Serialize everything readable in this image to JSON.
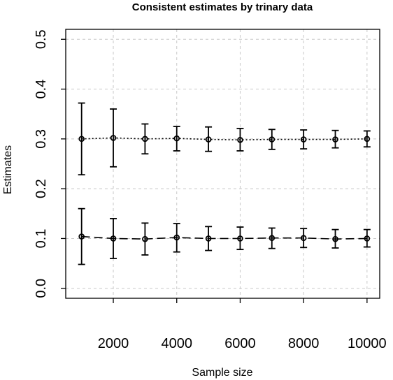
{
  "chart_data": {
    "type": "scatter",
    "title": "Consistent estimates by trinary data",
    "xlabel": "Sample size",
    "ylabel": "Estimates",
    "xlim": [
      500,
      10400
    ],
    "ylim": [
      -0.02,
      0.52
    ],
    "x_ticks": [
      2000,
      4000,
      6000,
      8000,
      10000
    ],
    "y_ticks": [
      0.0,
      0.1,
      0.2,
      0.3,
      0.4,
      0.5
    ],
    "x_tick_labels": [
      "2000",
      "4000",
      "6000",
      "8000",
      "10000"
    ],
    "y_tick_labels": [
      "0.0",
      "0.1",
      "0.2",
      "0.3",
      "0.4",
      "0.5"
    ],
    "grid": true,
    "x": [
      1000,
      2000,
      3000,
      4000,
      5000,
      6000,
      7000,
      8000,
      9000,
      10000
    ],
    "series": [
      {
        "line_style": "dotted",
        "values": [
          0.3,
          0.302,
          0.3,
          0.301,
          0.299,
          0.298,
          0.299,
          0.299,
          0.299,
          0.3
        ],
        "lower": [
          0.228,
          0.244,
          0.27,
          0.276,
          0.275,
          0.276,
          0.279,
          0.28,
          0.282,
          0.284
        ],
        "upper": [
          0.372,
          0.36,
          0.33,
          0.325,
          0.324,
          0.321,
          0.319,
          0.318,
          0.317,
          0.316
        ]
      },
      {
        "line_style": "dashed",
        "values": [
          0.104,
          0.1,
          0.099,
          0.102,
          0.1,
          0.1,
          0.101,
          0.101,
          0.099,
          0.1
        ],
        "lower": [
          0.048,
          0.06,
          0.067,
          0.073,
          0.076,
          0.078,
          0.08,
          0.082,
          0.081,
          0.083
        ],
        "upper": [
          0.16,
          0.14,
          0.131,
          0.13,
          0.124,
          0.123,
          0.121,
          0.12,
          0.118,
          0.118
        ]
      }
    ]
  }
}
